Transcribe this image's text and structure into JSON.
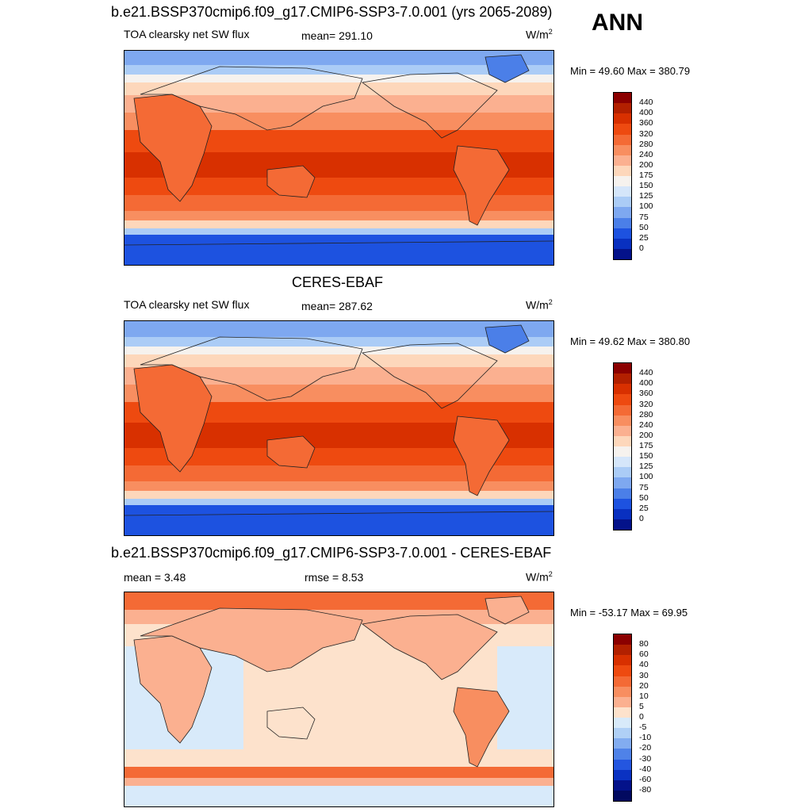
{
  "season": "ANN",
  "panels": [
    {
      "title": "b.e21.BSSP370cmip6.f09_g17.CMIP6-SSP3-7.0.001 (yrs 2065-2089)",
      "variable": "TOA clearsky net SW flux",
      "stat1": "mean= 291.10",
      "stat2": "",
      "units": "W/m",
      "units_sup": "2",
      "minmax": "Min =  49.60 Max = 380.79",
      "levels": [
        "440",
        "400",
        "360",
        "320",
        "280",
        "240",
        "200",
        "175",
        "150",
        "125",
        "100",
        "75",
        "50",
        "25",
        "0"
      ]
    },
    {
      "title": "CERES-EBAF",
      "variable": "TOA clearsky net SW flux",
      "stat1": "mean= 287.62",
      "stat2": "",
      "units": "W/m",
      "units_sup": "2",
      "minmax": "Min =  49.62 Max = 380.80",
      "levels": [
        "440",
        "400",
        "360",
        "320",
        "280",
        "240",
        "200",
        "175",
        "150",
        "125",
        "100",
        "75",
        "50",
        "25",
        "0"
      ]
    },
    {
      "title": "b.e21.BSSP370cmip6.f09_g17.CMIP6-SSP3-7.0.001 - CERES-EBAF",
      "variable": "",
      "stat1": "mean =   3.48",
      "stat2": "rmse =   8.53",
      "units": "W/m",
      "units_sup": "2",
      "minmax": "Min = -53.17 Max =  69.95",
      "levels": [
        "80",
        "60",
        "40",
        "30",
        "20",
        "10",
        "5",
        "0",
        "-5",
        "-10",
        "-20",
        "-30",
        "-40",
        "-60",
        "-80"
      ]
    }
  ],
  "colors": {
    "abs_scale": [
      "#8b0000",
      "#b22000",
      "#d83000",
      "#ee4a10",
      "#f46a35",
      "#f88e60",
      "#fbb090",
      "#fdd7bb",
      "#f6f2ee",
      "#d5e6fa",
      "#abccf6",
      "#7ea8f0",
      "#4b7fe8",
      "#1d52e0",
      "#0930c0",
      "#04128a"
    ],
    "diff_scale": [
      "#8b0000",
      "#b22000",
      "#d83000",
      "#ee4a10",
      "#f46a35",
      "#f88e60",
      "#fbb090",
      "#fde2cc",
      "#d8eafa",
      "#b0d0f6",
      "#82acf0",
      "#4f82e8",
      "#2456e0",
      "#0a32c2",
      "#04128a",
      "#020a60"
    ]
  }
}
